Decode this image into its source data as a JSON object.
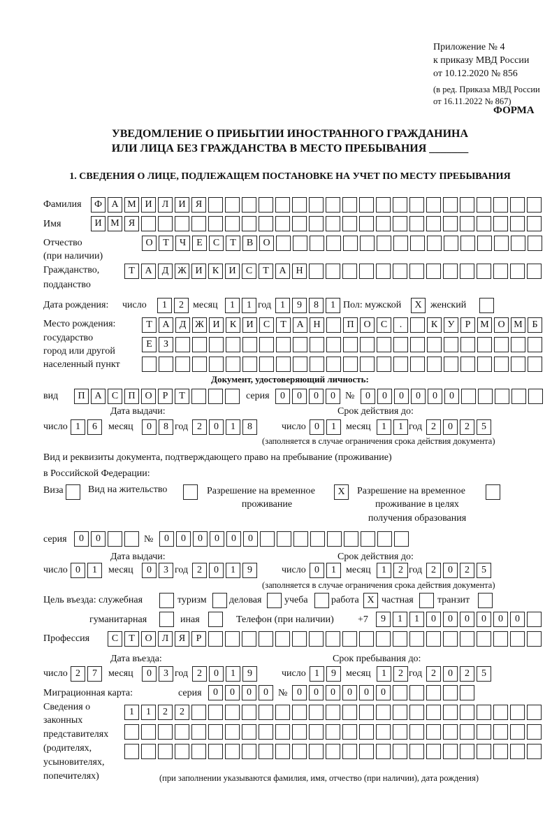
{
  "header": {
    "appendix": "Приложение № 4",
    "order": "к приказу МВД России",
    "order_date": "от 10.12.2020 № 856",
    "edition1": "(в ред. Приказа МВД России",
    "edition2": "от 16.11.2022 № 867)",
    "form_label": "ФОРМА",
    "title1": "УВЕДОМЛЕНИЕ О ПРИБЫТИИ ИНОСТРАННОГО ГРАЖДАНИНА",
    "title2": "ИЛИ ЛИЦА БЕЗ ГРАЖДАНСТВА В МЕСТО ПРЕБЫВАНИЯ _______",
    "section1": "1. СВЕДЕНИЯ О ЛИЦЕ, ПОДЛЕЖАЩЕМ ПОСТАНОВКЕ НА УЧЕТ ПО МЕСТУ ПРЕБЫВАНИЯ"
  },
  "labels": {
    "surname": "Фамилия",
    "name": "Имя",
    "patronymic1": "Отчество",
    "patronymic2": "(при наличии)",
    "citizenship1": "Гражданство,",
    "citizenship2": "подданство",
    "birth_date": "Дата рождения:",
    "day": "число",
    "month": "месяц",
    "year": "год",
    "sex": "Пол: мужской",
    "female": "женский",
    "birth_place1": "Место рождения:",
    "birth_place2": "государство",
    "birth_place3": "город или другой",
    "birth_place4": "населенный пункт",
    "id_doc": "Документ, удостоверяющий личность:",
    "kind": "вид",
    "series": "серия",
    "number": "№",
    "issue_date": "Дата выдачи:",
    "valid_until": "Срок действия до:",
    "validity_note": "(заполняется в случае ограничения срока действия документа)",
    "stay_doc1": "Вид и реквизиты документа, подтверждающего право на пребывание (проживание)",
    "stay_doc2": "в Российской Федерации:",
    "visa": "Виза",
    "residence": "Вид на жительство",
    "temp_res1": "Разрешение на временное",
    "temp_res2": "проживание",
    "temp_edu1": "Разрешение на временное",
    "temp_edu2": "проживание в целях",
    "temp_edu3": "получения образования",
    "purpose": "Цель въезда: служебная",
    "tourism": "туризм",
    "business": "деловая",
    "study": "учеба",
    "work": "работа",
    "private": "частная",
    "transit": "транзит",
    "humanitarian": "гуманитарная",
    "other": "иная",
    "phone": "Телефон (при наличии)",
    "phone_prefix": "+7",
    "profession": "Профессия",
    "entry_date": "Дата въезда:",
    "stay_until": "Срок пребывания до:",
    "migration_card": "Миграционная карта:",
    "reps1": "Сведения о",
    "reps2": "законных",
    "reps3": "представителях",
    "reps4": "(родителях,",
    "reps5": "усыновителях,",
    "reps6": "попечителях)",
    "reps_note": "(при заполнении указываются фамилия, имя, отчество (при наличии), дата рождения)"
  },
  "values": {
    "surname": "ФАМИЛИЯ",
    "name": "ИМЯ",
    "patronymic": "ОТЧЕСТВО",
    "citizenship": "ТАДЖИКИСТАН",
    "birth_day": "12",
    "birth_month": "11",
    "birth_year": "1981",
    "male": "X",
    "female": "",
    "birth_place1": "ТАДЖИКИСТАН ПОС. КУРМОМБ",
    "birth_place2": "ЕЗ",
    "birth_place3": "",
    "doc_kind": "ПАСПОРТ",
    "doc_series": "0000",
    "doc_number": "000000",
    "doc_issue_day": "16",
    "doc_issue_month": "08",
    "doc_issue_year": "2018",
    "doc_valid_day": "01",
    "doc_valid_month": "11",
    "doc_valid_year": "2025",
    "visa": "",
    "residence": "",
    "temp_res": "X",
    "temp_edu": "",
    "stay_series": "00",
    "stay_number": "000000",
    "stay_issue_day": "01",
    "stay_issue_month": "03",
    "stay_issue_year": "2019",
    "stay_valid_day": "01",
    "stay_valid_month": "12",
    "stay_valid_year": "2025",
    "p_service": "",
    "p_tourism": "",
    "p_business": "",
    "p_study": "",
    "p_work": "X",
    "p_private": "",
    "p_transit": "",
    "p_humanitarian": "",
    "p_other": "",
    "phone": "911000000",
    "profession": "СТОЛЯР",
    "entry_day": "27",
    "entry_month": "03",
    "entry_year": "2019",
    "until_day": "19",
    "until_month": "12",
    "until_year": "2025",
    "mc_series": "0000",
    "mc_number": "000000",
    "reps1": "1122",
    "reps2": "",
    "reps3": ""
  }
}
